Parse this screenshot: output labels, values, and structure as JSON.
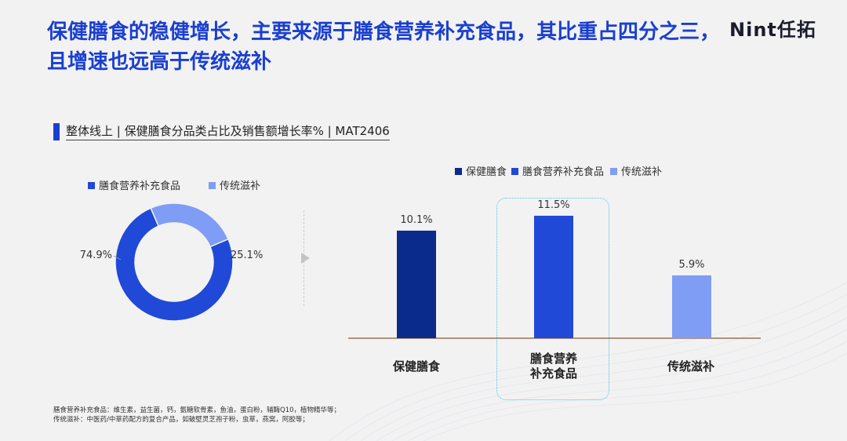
{
  "header": {
    "title": "保健膳食的稳健增长，主要来源于膳食营养补充食品，其比重占四分之三，且增速也远高于传统滋补",
    "logo": "Nint任拓"
  },
  "subtitle": "整体线上 | 保健膳食分品类占比及销售额增长率% | MAT2406",
  "colors": {
    "primary": "#1a3fd0",
    "dark": "#0a2a8c",
    "mid": "#1f49d6",
    "light": "#7f9df5"
  },
  "footnote": [
    "膳食营养补充食品：维生素，益生菌，钙，氨糖软骨素，鱼油，蛋白粉，辅酶Q10，植物精华等；",
    "传统滋补：中医药/中草药配方的复合产品，如破壁灵芝孢子粉，虫草，燕窝，阿胶等；"
  ],
  "chart_data": [
    {
      "type": "pie",
      "labels": [
        "膳食营养补充食品",
        "传统滋补"
      ],
      "values": [
        74.9,
        25.1
      ],
      "value_labels": [
        "74.9%",
        "25.1%"
      ],
      "colors": [
        "#1f49d6",
        "#7f9df5"
      ],
      "legend_position": "top"
    },
    {
      "type": "bar",
      "categories": [
        "保健膳食",
        "膳食营养补充食品",
        "传统滋补"
      ],
      "category_labels": [
        [
          "保健膳食"
        ],
        [
          "膳食营养",
          "补充食品"
        ],
        [
          "传统滋补"
        ]
      ],
      "values": [
        10.1,
        11.5,
        5.9
      ],
      "value_labels": [
        "10.1%",
        "11.5%",
        "5.9%"
      ],
      "colors": [
        "#0a2a8c",
        "#1f49d6",
        "#7f9df5"
      ],
      "legend": [
        "保健膳食",
        "膳食营养补充食品",
        "传统滋补"
      ],
      "legend_position": "top",
      "ylim": [
        0,
        14
      ],
      "grid": false,
      "highlight": "膳食营养补充食品"
    }
  ]
}
